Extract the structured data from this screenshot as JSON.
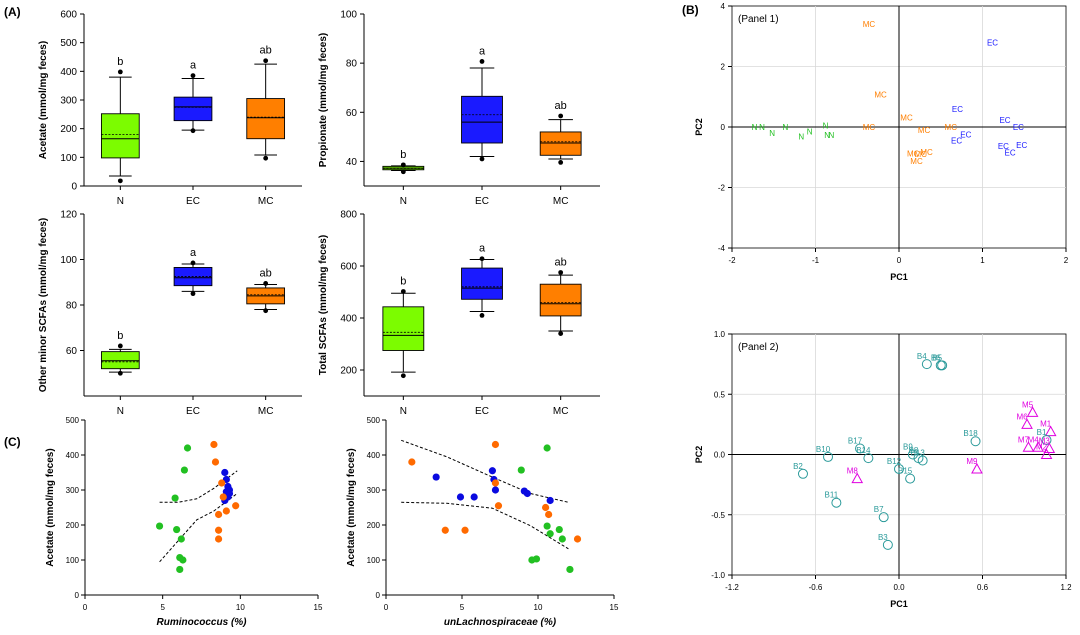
{
  "labels": {
    "panel_a": "(A)",
    "panel_b": "(B)",
    "panel_c": "(C)"
  },
  "colors": {
    "N": "#7cfc00",
    "EC": "#1a1aff",
    "MC": "#ff7f00",
    "scatterN": "#22c022",
    "scatterEC": "#0a0ae0",
    "scatterMC": "#ff6a00",
    "teal": "#2a9a9a",
    "magenta": "#e000e0",
    "grid": "#d8d8d8"
  },
  "chart_data": [
    {
      "type": "box",
      "name": "acetate",
      "ylabel": "Acetate (mmol/mg feces)",
      "categories": [
        "N",
        "EC",
        "MC"
      ],
      "ylim": [
        0,
        600
      ],
      "yticks": [
        0,
        100,
        200,
        300,
        400,
        500,
        600
      ],
      "boxes": [
        {
          "group": "N",
          "min": 35,
          "q1": 98,
          "median": 165,
          "mean": 180,
          "q3": 252,
          "max": 380,
          "outliers": [
            18,
            398
          ],
          "letter": "b"
        },
        {
          "group": "EC",
          "min": 195,
          "q1": 228,
          "median": 276,
          "mean": 275,
          "q3": 310,
          "max": 375,
          "outliers": [
            193,
            385
          ],
          "letter": "a"
        },
        {
          "group": "MC",
          "min": 108,
          "q1": 165,
          "median": 238,
          "mean": 240,
          "q3": 305,
          "max": 425,
          "outliers": [
            97,
            437
          ],
          "letter": "ab"
        }
      ]
    },
    {
      "type": "box",
      "name": "propionate",
      "ylabel": "Propionate (mmol/mg feces)",
      "categories": [
        "N",
        "EC",
        "MC"
      ],
      "ylim": [
        30,
        100
      ],
      "yticks": [
        40,
        60,
        80,
        100
      ],
      "boxes": [
        {
          "group": "N",
          "min": 36.3,
          "q1": 36.6,
          "median": 37.3,
          "mean": 37.2,
          "q3": 38.0,
          "max": 38.2,
          "outliers": [
            35.8,
            38.6
          ],
          "letter": "b"
        },
        {
          "group": "EC",
          "min": 42,
          "q1": 47.5,
          "median": 56,
          "mean": 59,
          "q3": 66.5,
          "max": 78,
          "outliers": [
            41,
            80.7
          ],
          "letter": "a"
        },
        {
          "group": "MC",
          "min": 41,
          "q1": 42.5,
          "median": 47.5,
          "mean": 48,
          "q3": 52,
          "max": 57,
          "outliers": [
            39.6,
            58.5
          ],
          "letter": "ab"
        }
      ]
    },
    {
      "type": "box",
      "name": "other_minor_scfas",
      "ylabel": "Other minor SCFAs  (mmol/mg feces)",
      "categories": [
        "N",
        "EC",
        "MC"
      ],
      "ylim": [
        40,
        120
      ],
      "yticks": [
        60,
        80,
        100,
        120
      ],
      "boxes": [
        {
          "group": "N",
          "min": 50.5,
          "q1": 52,
          "median": 55.5,
          "mean": 55,
          "q3": 59.5,
          "max": 60.5,
          "outliers": [
            50,
            62
          ],
          "letter": "b"
        },
        {
          "group": "EC",
          "min": 86,
          "q1": 88.5,
          "median": 92,
          "mean": 92.5,
          "q3": 96.5,
          "max": 98,
          "outliers": [
            85,
            98.5
          ],
          "letter": "a"
        },
        {
          "group": "MC",
          "min": 78,
          "q1": 80.5,
          "median": 84,
          "mean": 84.5,
          "q3": 87.5,
          "max": 89,
          "outliers": [
            77.5,
            89.5
          ],
          "letter": "ab"
        }
      ]
    },
    {
      "type": "box",
      "name": "total_scfas",
      "ylabel": "Total SCFAs  (mmol/mg feces)",
      "categories": [
        "N",
        "EC",
        "MC"
      ],
      "ylim": [
        100,
        800
      ],
      "yticks": [
        200,
        400,
        600,
        800
      ],
      "boxes": [
        {
          "group": "N",
          "min": 192,
          "q1": 275,
          "median": 333,
          "mean": 345,
          "q3": 443,
          "max": 495,
          "outliers": [
            178,
            502
          ],
          "letter": "b"
        },
        {
          "group": "EC",
          "min": 425,
          "q1": 472,
          "median": 515,
          "mean": 520,
          "q3": 592,
          "max": 625,
          "outliers": [
            410,
            628
          ],
          "letter": "a"
        },
        {
          "group": "MC",
          "min": 350,
          "q1": 408,
          "median": 455,
          "mean": 460,
          "q3": 530,
          "max": 565,
          "outliers": [
            340,
            575
          ],
          "letter": "ab"
        }
      ]
    },
    {
      "type": "scatter",
      "name": "pca_panel1",
      "title": "(Panel 1)",
      "xlabel": "PC1",
      "ylabel": "PC2",
      "xlim": [
        -2,
        2
      ],
      "ylim": [
        -4,
        4
      ],
      "xticks": [
        -2,
        -1,
        0,
        1,
        2
      ],
      "yticks": [
        -4,
        -2,
        0,
        2,
        4
      ],
      "points": [
        {
          "label": "N",
          "group": "N",
          "x": -1.73,
          "y": 0.0
        },
        {
          "label": "N",
          "group": "N",
          "x": -1.64,
          "y": 0.0
        },
        {
          "label": "N",
          "group": "N",
          "x": -1.52,
          "y": -0.2
        },
        {
          "label": "N",
          "group": "N",
          "x": -1.36,
          "y": 0.0
        },
        {
          "label": "N",
          "group": "N",
          "x": -1.17,
          "y": -0.32
        },
        {
          "label": "N",
          "group": "N",
          "x": -1.07,
          "y": -0.15
        },
        {
          "label": "N",
          "group": "N",
          "x": -0.88,
          "y": 0.05
        },
        {
          "label": "N",
          "group": "N",
          "x": -0.86,
          "y": -0.26
        },
        {
          "label": "N",
          "group": "N",
          "x": -0.81,
          "y": -0.26
        },
        {
          "label": "MC",
          "group": "MC",
          "x": -0.36,
          "y": 3.4
        },
        {
          "label": "MC",
          "group": "MC",
          "x": -0.22,
          "y": 1.07
        },
        {
          "label": "MC",
          "group": "MC",
          "x": -0.36,
          "y": 0.0
        },
        {
          "label": "MC",
          "group": "MC",
          "x": 0.09,
          "y": 0.31
        },
        {
          "label": "MC",
          "group": "MC",
          "x": 0.3,
          "y": -0.1
        },
        {
          "label": "MC",
          "group": "MC",
          "x": 0.62,
          "y": 0.0
        },
        {
          "label": "MC",
          "group": "MC",
          "x": 0.17,
          "y": -0.87
        },
        {
          "label": "MC",
          "group": "MC",
          "x": 0.26,
          "y": -0.9
        },
        {
          "label": "MC",
          "group": "MC",
          "x": 0.33,
          "y": -0.82
        },
        {
          "label": "MC",
          "group": "MC",
          "x": 0.21,
          "y": -1.12
        },
        {
          "label": "EC",
          "group": "EC",
          "x": 1.12,
          "y": 2.8
        },
        {
          "label": "EC",
          "group": "EC",
          "x": 0.7,
          "y": 0.6
        },
        {
          "label": "EC",
          "group": "EC",
          "x": 0.8,
          "y": -0.25
        },
        {
          "label": "EC",
          "group": "EC",
          "x": 0.69,
          "y": -0.45
        },
        {
          "label": "EC",
          "group": "EC",
          "x": 1.27,
          "y": 0.23
        },
        {
          "label": "EC",
          "group": "EC",
          "x": 1.43,
          "y": 0.0
        },
        {
          "label": "EC",
          "group": "EC",
          "x": 1.25,
          "y": -0.63
        },
        {
          "label": "EC",
          "group": "EC",
          "x": 1.47,
          "y": -0.6
        },
        {
          "label": "EC",
          "group": "EC",
          "x": 1.33,
          "y": -0.85
        }
      ]
    },
    {
      "type": "scatter",
      "name": "pca_panel2",
      "title": "(Panel 2)",
      "xlabel": "PC1",
      "ylabel": "PC2",
      "xlim": [
        -1.2,
        1.2
      ],
      "ylim": [
        -1.0,
        1.0
      ],
      "xticks": [
        -1.2,
        -0.6,
        0.0,
        0.6,
        1.2
      ],
      "xtick_labels": [
        "-1.2",
        "-0.6",
        "0.0",
        "0.6",
        "1.2"
      ],
      "yticks": [
        -1.0,
        -0.5,
        0.0,
        0.5,
        1.0
      ],
      "ytick_labels": [
        "-1.0",
        "-0.5",
        "0.0",
        "0.5",
        "1.0"
      ],
      "points": [
        {
          "label": "B4",
          "group": "B",
          "x": 0.2,
          "y": 0.75
        },
        {
          "label": "B6",
          "group": "B",
          "x": 0.3,
          "y": 0.74
        },
        {
          "label": "B5",
          "group": "B",
          "x": 0.31,
          "y": 0.74
        },
        {
          "label": "B18",
          "group": "B",
          "x": 0.55,
          "y": 0.11
        },
        {
          "label": "B10",
          "group": "B",
          "x": -0.51,
          "y": -0.02
        },
        {
          "label": "B17",
          "group": "B",
          "x": -0.28,
          "y": 0.05
        },
        {
          "label": "B14",
          "group": "B",
          "x": -0.22,
          "y": -0.03
        },
        {
          "label": "B9",
          "group": "B",
          "x": 0.1,
          "y": 0.0
        },
        {
          "label": "B8",
          "group": "B",
          "x": 0.14,
          "y": -0.03
        },
        {
          "label": "B13",
          "group": "B",
          "x": 0.17,
          "y": -0.05
        },
        {
          "label": "B12",
          "group": "B",
          "x": 0.0,
          "y": -0.12
        },
        {
          "label": "B15",
          "group": "B",
          "x": 0.08,
          "y": -0.2
        },
        {
          "label": "B2",
          "group": "B",
          "x": -0.69,
          "y": -0.16
        },
        {
          "label": "B11",
          "group": "B",
          "x": -0.45,
          "y": -0.4
        },
        {
          "label": "B7",
          "group": "B",
          "x": -0.11,
          "y": -0.52
        },
        {
          "label": "B3",
          "group": "B",
          "x": -0.08,
          "y": -0.75
        },
        {
          "label": "M5",
          "group": "M",
          "x": 0.96,
          "y": 0.35
        },
        {
          "label": "M6",
          "group": "M",
          "x": 0.92,
          "y": 0.25
        },
        {
          "label": "M1",
          "group": "M",
          "x": 1.09,
          "y": 0.19
        },
        {
          "label": "B1",
          "group": "B",
          "x": 1.06,
          "y": 0.12
        },
        {
          "label": "M7",
          "group": "M",
          "x": 0.93,
          "y": 0.06
        },
        {
          "label": "M4",
          "group": "M",
          "x": 1.0,
          "y": 0.06
        },
        {
          "label": "M3",
          "group": "M",
          "x": 1.08,
          "y": 0.05
        },
        {
          "label": "M2",
          "group": "M",
          "x": 1.06,
          "y": 0.0
        },
        {
          "label": "M8",
          "group": "M",
          "x": -0.3,
          "y": -0.2
        },
        {
          "label": "M9",
          "group": "M",
          "x": 0.56,
          "y": -0.12
        }
      ]
    },
    {
      "type": "scatter",
      "name": "acetate_vs_ruminococcus",
      "xlabel": "Ruminococcus (%)",
      "ylabel": "Acetate (mmol/mg feces)",
      "xlim": [
        0,
        15
      ],
      "ylim": [
        0,
        500
      ],
      "xticks": [
        0,
        5,
        10,
        15
      ],
      "yticks": [
        0,
        100,
        200,
        300,
        400,
        500
      ],
      "series": [
        {
          "name": "N",
          "points": [
            [
              4.8,
              197
            ],
            [
              5.8,
              277
            ],
            [
              5.9,
              187
            ],
            [
              6.1,
              107
            ],
            [
              6.1,
              73
            ],
            [
              6.2,
              160
            ],
            [
              6.3,
              100
            ],
            [
              6.4,
              357
            ],
            [
              6.6,
              420
            ]
          ]
        },
        {
          "name": "EC",
          "points": [
            [
              9.0,
              350
            ],
            [
              9.1,
              330
            ],
            [
              9.2,
              310
            ],
            [
              9.1,
              295
            ],
            [
              9.2,
              280
            ],
            [
              9.3,
              300
            ],
            [
              9.0,
              270
            ],
            [
              9.1,
              285
            ],
            [
              9.3,
              290
            ]
          ]
        },
        {
          "name": "MC",
          "points": [
            [
              8.3,
              430
            ],
            [
              8.4,
              380
            ],
            [
              8.8,
              320
            ],
            [
              8.6,
              230
            ],
            [
              8.6,
              185
            ],
            [
              8.6,
              160
            ],
            [
              9.1,
              240
            ],
            [
              9.7,
              255
            ],
            [
              8.9,
              280
            ]
          ]
        }
      ],
      "ci_upper": [
        [
          4.8,
          265
        ],
        [
          6.0,
          265
        ],
        [
          7.2,
          275
        ],
        [
          8.3,
          305
        ],
        [
          9.8,
          355
        ]
      ],
      "ci_lower": [
        [
          4.8,
          95
        ],
        [
          6.0,
          155
        ],
        [
          7.2,
          215
        ],
        [
          8.3,
          240
        ],
        [
          9.8,
          290
        ]
      ]
    },
    {
      "type": "scatter",
      "name": "acetate_vs_unlachnospiraceae",
      "xlabel": "unLachnospiraceae (%)",
      "ylabel": "Acetate (mmol/mg feces)",
      "xlim": [
        0,
        15
      ],
      "ylim": [
        0,
        500
      ],
      "xticks": [
        0,
        5,
        10,
        15
      ],
      "yticks": [
        0,
        100,
        200,
        300,
        400,
        500
      ],
      "series": [
        {
          "name": "N",
          "points": [
            [
              8.9,
              357
            ],
            [
              10.6,
              420
            ],
            [
              9.9,
              103
            ],
            [
              9.6,
              100
            ],
            [
              10.6,
              197
            ],
            [
              11.4,
              187
            ],
            [
              11.6,
              160
            ],
            [
              12.1,
              73
            ],
            [
              10.8,
              175
            ]
          ]
        },
        {
          "name": "EC",
          "points": [
            [
              3.3,
              337
            ],
            [
              4.9,
              280
            ],
            [
              5.8,
              280
            ],
            [
              7.0,
              355
            ],
            [
              7.1,
              330
            ],
            [
              7.2,
              300
            ],
            [
              9.1,
              297
            ],
            [
              9.3,
              290
            ],
            [
              10.8,
              270
            ]
          ]
        },
        {
          "name": "MC",
          "points": [
            [
              1.7,
              380
            ],
            [
              3.9,
              185
            ],
            [
              5.2,
              185
            ],
            [
              7.2,
              430
            ],
            [
              7.2,
              320
            ],
            [
              7.4,
              255
            ],
            [
              10.5,
              250
            ],
            [
              10.7,
              230
            ],
            [
              12.6,
              160
            ]
          ]
        }
      ],
      "ci_upper": [
        [
          1.0,
          442
        ],
        [
          4.0,
          395
        ],
        [
          7.0,
          337
        ],
        [
          9.5,
          290
        ],
        [
          12.0,
          265
        ]
      ],
      "ci_lower": [
        [
          1.0,
          265
        ],
        [
          4.0,
          262
        ],
        [
          7.0,
          248
        ],
        [
          9.5,
          198
        ],
        [
          12.0,
          132
        ]
      ]
    }
  ]
}
